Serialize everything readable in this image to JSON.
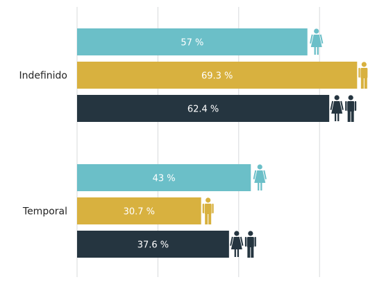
{
  "chart_data": {
    "type": "bar",
    "orientation": "horizontal",
    "title": "",
    "xlabel": "",
    "ylabel": "",
    "xlim": [
      0,
      70
    ],
    "grid": true,
    "legend": "none",
    "categories": [
      "Indefinido",
      "Temporal"
    ],
    "series": [
      {
        "key": "mujeres",
        "color": "#6bbfc8",
        "icon": "woman-icon",
        "values": [
          57,
          43
        ],
        "labels": [
          "57 %",
          "43 %"
        ]
      },
      {
        "key": "hombres",
        "color": "#d8b13f",
        "icon": "man-icon",
        "values": [
          69.3,
          30.7
        ],
        "labels": [
          "69.3 %",
          "30.7 %"
        ]
      },
      {
        "key": "total",
        "color": "#253540",
        "icon": "couple-icon",
        "values": [
          62.4,
          37.6
        ],
        "labels": [
          "62.4 %",
          "37.6 %"
        ]
      }
    ]
  }
}
